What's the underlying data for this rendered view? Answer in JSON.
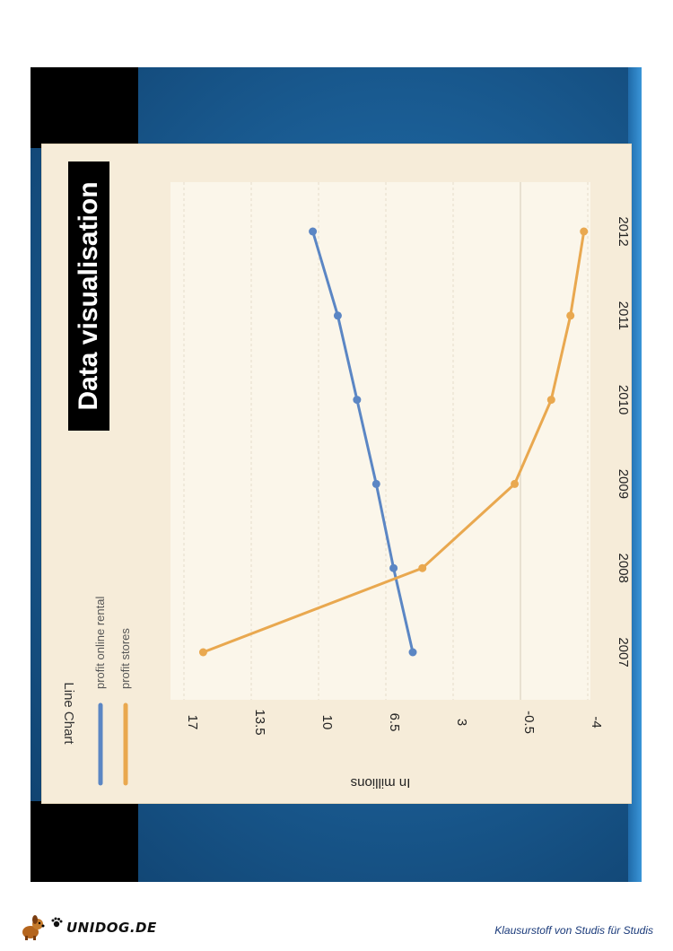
{
  "slide": {
    "title": "Data visualisation"
  },
  "footer": {
    "logo_text": "UNIDOG.DE",
    "slogan": "Klausurstoff von Studis für Studis"
  },
  "chart_data": {
    "type": "line",
    "title": "Line Chart",
    "ylabel": "In millions",
    "xlabel": "",
    "categories": [
      "2007",
      "2008",
      "2009",
      "2010",
      "2011",
      "2012"
    ],
    "yticks": [
      "-4",
      "-0.5",
      "3",
      "6.5",
      "10",
      "13.5",
      "17"
    ],
    "ytick_values": [
      -4,
      -0.5,
      3,
      6.5,
      10,
      13.5,
      17
    ],
    "ylim": [
      -4,
      17
    ],
    "orientation": "rotated 90° clockwise",
    "grid": true,
    "legend_position": "top",
    "series": [
      {
        "name": "profit online rental",
        "color": "#5b86c4",
        "values": [
          5.1,
          6.1,
          7.0,
          8.0,
          9.0,
          10.3
        ]
      },
      {
        "name": "profit stores",
        "color": "#e9a84f",
        "values": [
          16.0,
          4.6,
          -0.2,
          -2.1,
          -3.1,
          -3.8
        ]
      }
    ]
  }
}
